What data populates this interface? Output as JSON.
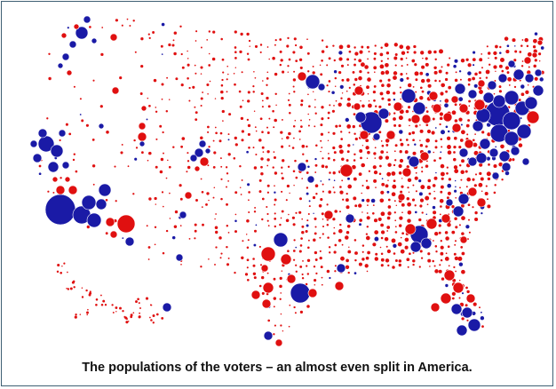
{
  "caption": "The populations of the voters – an almost even split in America.",
  "legend_colors": {
    "democratic": "#1a1aa6",
    "republican": "#e01010"
  },
  "map": {
    "subject": "united-states-county-population-bubbles",
    "encoding": "bubble-area-population"
  }
}
